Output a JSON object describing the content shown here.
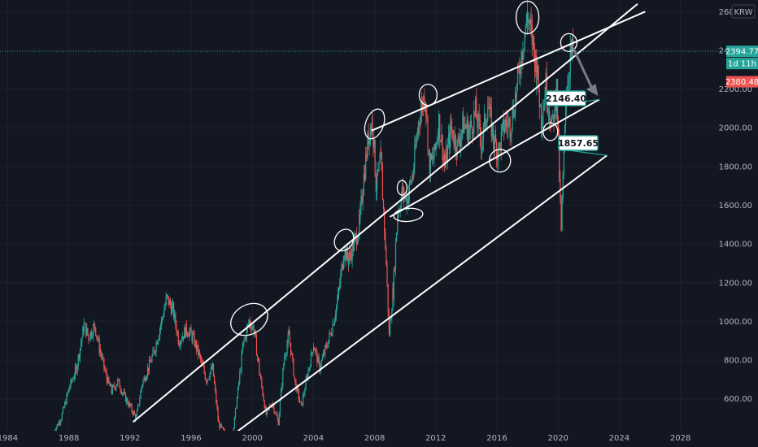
{
  "currency_label": "KRW",
  "colors": {
    "background": "#131722",
    "grid": "#1e222d",
    "axis_text": "#b2b5be",
    "up": "#26a69a",
    "down": "#ef5350",
    "channel": "#ffffff",
    "callout_border": "#26a69a",
    "price_badge": "#26a69a",
    "countdown_badge": "#26a69a",
    "prev_close_badge": "#ef5350"
  },
  "price_badges": {
    "last_price": "2394.77",
    "countdown": "1d 11h",
    "prev_close": "2380.48"
  },
  "callouts": [
    {
      "label": "2146.40",
      "value": 2146.4
    },
    {
      "label": "1857.65",
      "value": 1857.65
    }
  ],
  "chart_data": {
    "type": "candlestick",
    "symbol_currency": "KRW",
    "x_ticks": [
      "1984",
      "1988",
      "1992",
      "1996",
      "2000",
      "2004",
      "2008",
      "2012",
      "2016",
      "2020",
      "2024",
      "2028"
    ],
    "y_ticks": [
      "600.00",
      "800.00",
      "1000.00",
      "1200.00",
      "1400.00",
      "1600.00",
      "1800.00",
      "2000.00",
      "2200.00",
      "2400.00",
      "2600.00"
    ],
    "xlim": [
      1983.5,
      2031
    ],
    "ylim": [
      435,
      2660
    ],
    "series": [
      {
        "points": [
          [
            1987.0,
            430
          ],
          [
            1987.5,
            500
          ],
          [
            1988.0,
            650
          ],
          [
            1988.5,
            760
          ],
          [
            1989.0,
            980
          ],
          [
            1989.3,
            920
          ],
          [
            1989.7,
            980
          ],
          [
            1990.0,
            860
          ],
          [
            1990.5,
            700
          ],
          [
            1990.8,
            640
          ],
          [
            1991.2,
            690
          ],
          [
            1991.6,
            620
          ],
          [
            1992.0,
            560
          ],
          [
            1992.4,
            500
          ],
          [
            1992.8,
            680
          ],
          [
            1993.2,
            760
          ],
          [
            1993.6,
            850
          ],
          [
            1994.0,
            980
          ],
          [
            1994.4,
            1120
          ],
          [
            1994.8,
            1060
          ],
          [
            1995.2,
            900
          ],
          [
            1995.7,
            960
          ],
          [
            1996.1,
            920
          ],
          [
            1996.5,
            830
          ],
          [
            1997.0,
            700
          ],
          [
            1997.4,
            760
          ],
          [
            1997.8,
            470
          ],
          [
            1998.2,
            420
          ],
          [
            1998.6,
            330
          ],
          [
            1999.0,
            600
          ],
          [
            1999.4,
            880
          ],
          [
            1999.8,
            1000
          ],
          [
            2000.1,
            960
          ],
          [
            2000.5,
            720
          ],
          [
            2000.9,
            520
          ],
          [
            2001.3,
            580
          ],
          [
            2001.7,
            480
          ],
          [
            2002.1,
            820
          ],
          [
            2002.4,
            930
          ],
          [
            2002.8,
            680
          ],
          [
            2003.2,
            560
          ],
          [
            2003.6,
            720
          ],
          [
            2004.0,
            880
          ],
          [
            2004.4,
            760
          ],
          [
            2004.8,
            860
          ],
          [
            2005.2,
            960
          ],
          [
            2005.6,
            1120
          ],
          [
            2006.0,
            1370
          ],
          [
            2006.3,
            1320
          ],
          [
            2006.7,
            1410
          ],
          [
            2007.0,
            1500
          ],
          [
            2007.3,
            1750
          ],
          [
            2007.6,
            1960
          ],
          [
            2007.85,
            2040
          ],
          [
            2008.1,
            1700
          ],
          [
            2008.4,
            1830
          ],
          [
            2008.7,
            1400
          ],
          [
            2008.95,
            940
          ],
          [
            2009.2,
            1150
          ],
          [
            2009.5,
            1560
          ],
          [
            2009.8,
            1660
          ],
          [
            2010.1,
            1630
          ],
          [
            2010.5,
            1760
          ],
          [
            2010.9,
            2050
          ],
          [
            2011.3,
            2180
          ],
          [
            2011.6,
            1800
          ],
          [
            2011.9,
            1850
          ],
          [
            2012.2,
            2030
          ],
          [
            2012.6,
            1800
          ],
          [
            2013.0,
            2000
          ],
          [
            2013.4,
            1900
          ],
          [
            2013.8,
            2020
          ],
          [
            2014.2,
            1980
          ],
          [
            2014.6,
            2080
          ],
          [
            2015.0,
            1920
          ],
          [
            2015.4,
            2120
          ],
          [
            2015.8,
            1930
          ],
          [
            2016.1,
            1880
          ],
          [
            2016.5,
            2020
          ],
          [
            2016.9,
            2020
          ],
          [
            2017.3,
            2200
          ],
          [
            2017.7,
            2440
          ],
          [
            2018.0,
            2580
          ],
          [
            2018.3,
            2460
          ],
          [
            2018.6,
            2300
          ],
          [
            2018.9,
            2050
          ],
          [
            2019.2,
            2220
          ],
          [
            2019.6,
            2000
          ],
          [
            2019.9,
            2200
          ],
          [
            2020.2,
            1460
          ],
          [
            2020.5,
            2150
          ],
          [
            2020.8,
            2370
          ],
          [
            2021.0,
            2394.77
          ]
        ]
      }
    ],
    "channel_lines": [
      {
        "start": [
          1992.2,
          480
        ],
        "end": [
          2025.2,
          2640
        ]
      },
      {
        "start": [
          2007.8,
          1985
        ],
        "end": [
          2025.7,
          2600
        ]
      },
      {
        "start": [
          1999.0,
          430
        ],
        "end": [
          2023.2,
          1857.65
        ]
      },
      {
        "start": [
          2009.0,
          1540
        ],
        "end": [
          2022.7,
          2146.4
        ]
      }
    ],
    "annotation_ellipses": [
      {
        "center": [
          1999.8,
          1010
        ]
      },
      {
        "center": [
          2006.0,
          1420
        ]
      },
      {
        "center": [
          2008.0,
          2020
        ]
      },
      {
        "center": [
          2009.8,
          1690
        ]
      },
      {
        "center": [
          2010.2,
          1550
        ]
      },
      {
        "center": [
          2011.5,
          2170
        ]
      },
      {
        "center": [
          2016.2,
          1830
        ]
      },
      {
        "center": [
          2018.0,
          2570
        ]
      },
      {
        "center": [
          2019.5,
          1980
        ]
      },
      {
        "center": [
          2020.7,
          2440
        ]
      }
    ],
    "last_price": 2394.77,
    "prev_close": 2380.48,
    "grid": true
  }
}
